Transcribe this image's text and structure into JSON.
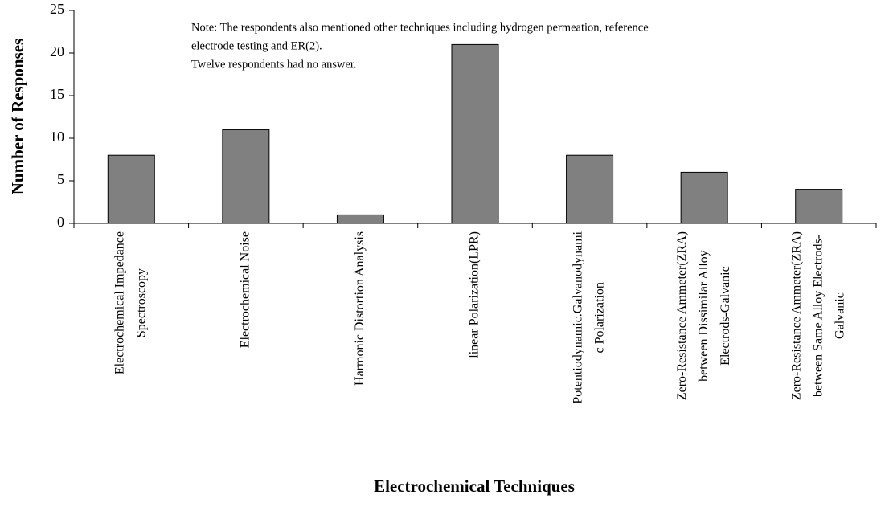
{
  "chart_data": {
    "type": "bar",
    "xlabel": "Electrochemical Techniques",
    "ylabel": "Number of Responses",
    "annotation": [
      "Note: The respondents also mentioned other techniques including hydrogen permeation, reference",
      "electrode testing and ER(2).",
      "Twelve respondents had no answer."
    ],
    "categories": [
      [
        "Electrochemical Impedance",
        "Spectroscopy"
      ],
      [
        "Electrochemical Noise"
      ],
      [
        "Harmonic Distortion Analysis"
      ],
      [
        "linear Polarization(LPR)"
      ],
      [
        "Potentiodynamic.Galvanodynami",
        "c Polarization"
      ],
      [
        "Zero-Resistance Ammeter(ZRA)",
        "between Dissimilar Alloy",
        "Electrods-Galvanic"
      ],
      [
        "Zero-Resistance Ammeter(ZRA)",
        "between Same Alloy Electrods-",
        "Galvanic"
      ]
    ],
    "values": [
      8,
      11,
      1,
      21,
      8,
      6,
      4
    ],
    "color": "#808080",
    "ylim": [
      0,
      25
    ],
    "yticks": [
      0,
      5,
      10,
      15,
      20,
      25
    ],
    "grid": false
  }
}
